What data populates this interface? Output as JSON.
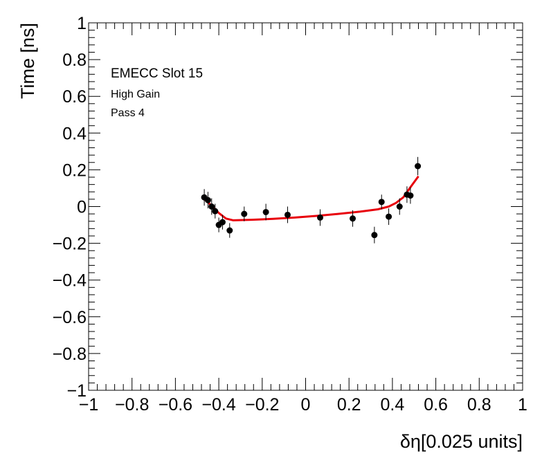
{
  "chart_data": {
    "type": "scatter",
    "title": "",
    "xlabel": "δη[0.025 units]",
    "ylabel": "Time [ns]",
    "xlim": [
      -1,
      1
    ],
    "ylim": [
      -1,
      1
    ],
    "x_ticks": [
      "−1",
      "−0.8",
      "−0.6",
      "−0.4",
      "−0.2",
      "0",
      "0.2",
      "0.4",
      "0.6",
      "0.8",
      "1"
    ],
    "y_ticks": [
      "−1",
      "−0.8",
      "−0.6",
      "−0.4",
      "−0.2",
      "0",
      "0.2",
      "0.4",
      "0.6",
      "0.8",
      "1"
    ],
    "grid": false,
    "annotations": [
      "EMECC Slot 15",
      "High Gain",
      "Pass 4"
    ],
    "series": [
      {
        "type": "scatter",
        "color": "#000000",
        "x": [
          -0.467,
          -0.45,
          -0.433,
          -0.417,
          -0.4,
          -0.383,
          -0.35,
          -0.283,
          -0.183,
          -0.083,
          0.067,
          0.217,
          0.317,
          0.35,
          0.383,
          0.433,
          0.467,
          0.483,
          0.517
        ],
        "y": [
          0.05,
          0.035,
          0.0,
          -0.025,
          -0.1,
          -0.085,
          -0.13,
          -0.04,
          -0.03,
          -0.045,
          -0.06,
          -0.065,
          -0.155,
          0.025,
          -0.055,
          0.0,
          0.065,
          0.06,
          0.22
        ],
        "yerr": [
          0.045,
          0.045,
          0.045,
          0.04,
          0.04,
          0.04,
          0.04,
          0.04,
          0.045,
          0.045,
          0.045,
          0.045,
          0.045,
          0.04,
          0.045,
          0.045,
          0.045,
          0.045,
          0.05
        ]
      },
      {
        "type": "line",
        "color": "#e8000b",
        "x": [
          -0.467,
          -0.433,
          -0.4,
          -0.367,
          -0.333,
          -0.25,
          -0.15,
          -0.05,
          0.05,
          0.15,
          0.25,
          0.333,
          0.383,
          0.417,
          0.45,
          0.483,
          0.52
        ],
        "y": [
          0.04,
          0.005,
          -0.035,
          -0.065,
          -0.075,
          -0.072,
          -0.067,
          -0.06,
          -0.051,
          -0.04,
          -0.028,
          -0.015,
          0.0,
          0.02,
          0.05,
          0.105,
          0.165
        ]
      }
    ]
  }
}
